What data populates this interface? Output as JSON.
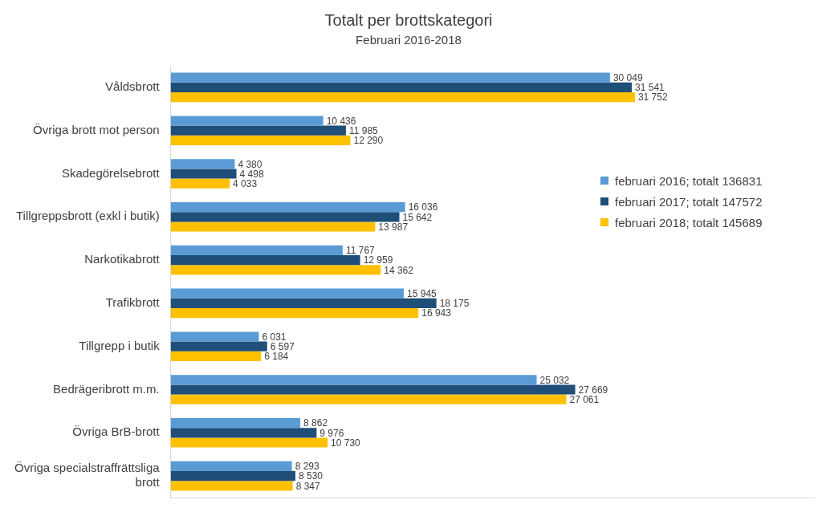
{
  "chart_data": {
    "type": "bar",
    "orientation": "horizontal",
    "title": "Totalt per brottskategori",
    "subtitle": "Februari 2016-2018",
    "categories": [
      "Våldsbrott",
      "Övriga brott mot person",
      "Skadegörelsebrott",
      "Tillgreppsbrott (exkl i butik)",
      "Narkotikabrott",
      "Trafikbrott",
      "Tillgrepp i butik",
      "Bedrägeribrott m.m.",
      "Övriga BrB-brott",
      "Övriga specialstraffrättsliga brott"
    ],
    "series": [
      {
        "name": "februari 2016; totalt 136831",
        "color": "#5b9bd5",
        "values": [
          30049,
          10436,
          4380,
          16036,
          11767,
          15945,
          6031,
          25032,
          8862,
          8293
        ],
        "value_labels": [
          "30 049",
          "10 436",
          "4 380",
          "16 036",
          "11 767",
          "15 945",
          "6 031",
          "25 032",
          "8 862",
          "8 293"
        ]
      },
      {
        "name": "februari 2017; totalt 147572",
        "color": "#1f4e79",
        "values": [
          31541,
          11985,
          4498,
          15642,
          12959,
          18175,
          6597,
          27669,
          9976,
          8530
        ],
        "value_labels": [
          "31 541",
          "11 985",
          "4 498",
          "15 642",
          "12 959",
          "18 175",
          "6 597",
          "27 669",
          "9 976",
          "8 530"
        ]
      },
      {
        "name": "februari 2018; totalt 145689",
        "color": "#ffc000",
        "values": [
          31752,
          12290,
          4033,
          13987,
          14362,
          16943,
          6184,
          27061,
          10730,
          8347
        ],
        "value_labels": [
          "31 752",
          "12 290",
          "4 033",
          "13 987",
          "14 362",
          "16 943",
          "6 184",
          "27 061",
          "10 730",
          "8 347"
        ]
      }
    ],
    "xlim": [
      0,
      44000
    ],
    "xticks": [],
    "grid": false,
    "legend": "right",
    "data_labels": true,
    "tick_labels": "y"
  }
}
